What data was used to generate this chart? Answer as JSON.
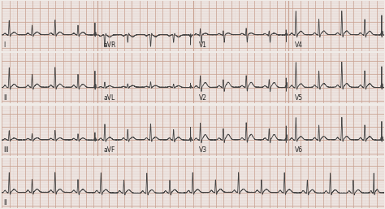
{
  "background_color": "#f0ece8",
  "grid_major_color": "#c8a090",
  "grid_minor_color": "#e0c8c0",
  "line_color": "#444444",
  "line_width": 0.6,
  "text_color": "#222222",
  "font_size": 5.5,
  "row_labels": [
    "I",
    "II",
    "III",
    "II"
  ],
  "col_labels": [
    [
      "aVR",
      "V1",
      "V4"
    ],
    [
      "aVL",
      "V2",
      "V5"
    ],
    [
      "aVF",
      "V3",
      "V6"
    ],
    []
  ],
  "col_label_positions": [
    [
      0.265,
      0.515,
      0.765
    ],
    [
      0.265,
      0.515,
      0.765
    ],
    [
      0.265,
      0.515,
      0.765
    ],
    []
  ],
  "figsize": [
    4.74,
    2.57
  ],
  "dpi": 100
}
